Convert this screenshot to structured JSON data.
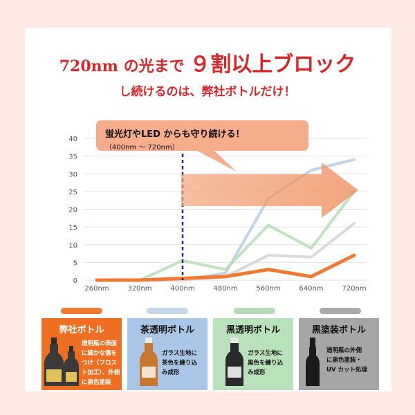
{
  "heading": {
    "line1_pre": "720nm の光まで",
    "line1_emph": "９割以上ブロック",
    "line2": "し続けるのは、弊社ボトルだけ！"
  },
  "callout": {
    "line1": "蛍光灯やLED からも守り続ける！",
    "line2": "（400nm ～ 720nm）"
  },
  "chart_data": {
    "type": "line",
    "categories": [
      "260nm",
      "320nm",
      "400nm",
      "480nm",
      "560nm",
      "640nm",
      "720nm"
    ],
    "ylim": [
      0,
      40
    ],
    "yticks": [
      0,
      5,
      10,
      15,
      20,
      25,
      30,
      35,
      40
    ],
    "grid": true,
    "marker_line_at": "400nm",
    "arrow_range": [
      "400nm",
      "720nm"
    ],
    "series": [
      {
        "name": "弊社ボトル",
        "color": "#f07a2f",
        "values": [
          0,
          0,
          0.5,
          1,
          3,
          1,
          7
        ]
      },
      {
        "name": "茶透明ボトル",
        "color": "#b6cde6",
        "values": [
          0,
          0,
          0,
          2,
          23,
          31,
          34
        ]
      },
      {
        "name": "黒透明ボトル",
        "color": "#b6dcb6",
        "values": [
          0,
          0,
          5.5,
          3,
          15.5,
          9,
          25
        ]
      },
      {
        "name": "黒塗装ボトル",
        "color": "#d2d2d2",
        "values": [
          0,
          0,
          0,
          1,
          7,
          6.5,
          16
        ]
      }
    ]
  },
  "cards": [
    {
      "title": "弊社ボトル",
      "desc": [
        "透明瓶の表面",
        "に細かな傷を",
        "つけ（フロス",
        "ト加工）、外側",
        "に黒色塗装"
      ],
      "bg": "#ef6f22",
      "pill": "#f07a2f"
    },
    {
      "title": "茶透明ボトル",
      "desc": [
        "ガラス生地に",
        "茶色を練り込",
        "み成形"
      ],
      "bg": "#a9c6e6",
      "pill": "#c7d8ea"
    },
    {
      "title": "黒透明ボトル",
      "desc": [
        "ガラス生地に",
        "黒色を練り込",
        "み成形"
      ],
      "bg": "#b9e1bb",
      "pill": "#b6dcb6"
    },
    {
      "title": "黒塗装ボトル",
      "desc": [
        "透明瓶の外側",
        "に黒色塗装・",
        "UV カット処理"
      ],
      "bg": "#a6a6a6",
      "pill": "#a9a9a9"
    }
  ]
}
